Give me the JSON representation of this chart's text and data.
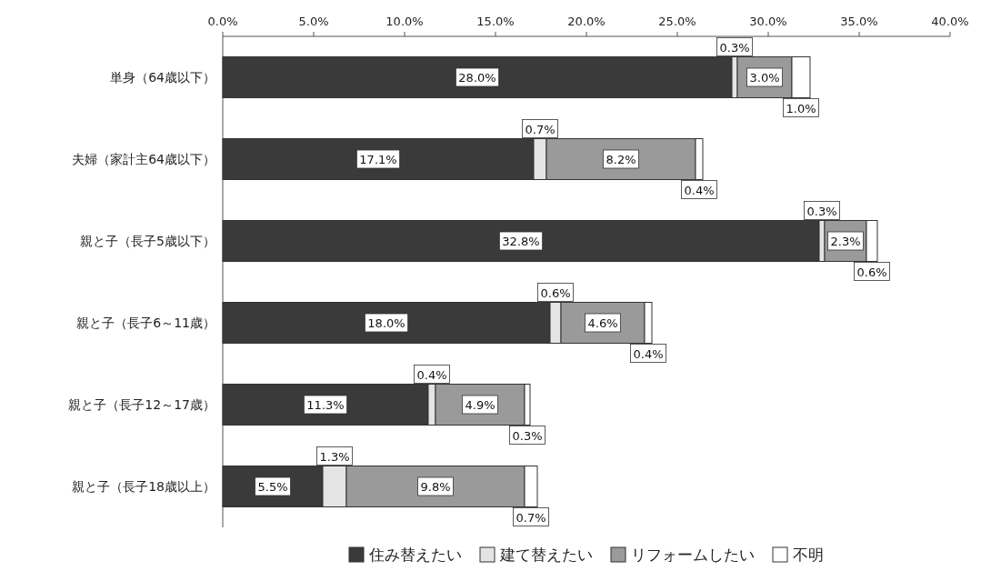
{
  "chart_data": {
    "type": "bar",
    "orientation": "horizontal",
    "stacked": true,
    "categories": [
      "単身（64歳以下）",
      "夫婦（家計主64歳以下）",
      "親と子（長子5歳以下）",
      "親と子（長子6～11歳）",
      "親と子（長子12～17歳）",
      "親と子（長子18歳以上）"
    ],
    "series": [
      {
        "name": "住み替えたい",
        "color": "#3a3a3a",
        "values": [
          28.0,
          17.1,
          32.8,
          18.0,
          11.3,
          5.5
        ],
        "value_labels": [
          "28.0%",
          "17.1%",
          "32.8%",
          "18.0%",
          "11.3%",
          "5.5%"
        ]
      },
      {
        "name": "建て替えたい",
        "color": "#e4e4e4",
        "values": [
          0.3,
          0.7,
          0.3,
          0.6,
          0.4,
          1.3
        ],
        "value_labels": [
          "0.3%",
          "0.7%",
          "0.3%",
          "0.6%",
          "0.4%",
          "1.3%"
        ]
      },
      {
        "name": "リフォームしたい",
        "color": "#9a9a9a",
        "values": [
          3.0,
          8.2,
          2.3,
          4.6,
          4.9,
          9.8
        ],
        "value_labels": [
          "3.0%",
          "8.2%",
          "2.3%",
          "4.6%",
          "4.9%",
          "9.8%"
        ]
      },
      {
        "name": "不明",
        "color": "#ffffff",
        "values": [
          1.0,
          0.4,
          0.6,
          0.4,
          0.3,
          0.7
        ],
        "value_labels": [
          "1.0%",
          "0.4%",
          "0.6%",
          "0.4%",
          "0.3%",
          "0.7%"
        ]
      }
    ],
    "xlim": [
      0,
      40
    ],
    "xticks": [
      {
        "value": 0,
        "label": "0.0%"
      },
      {
        "value": 5,
        "label": "5.0%"
      },
      {
        "value": 10,
        "label": "10.0%"
      },
      {
        "value": 15,
        "label": "15.0%"
      },
      {
        "value": 20,
        "label": "20.0%"
      },
      {
        "value": 25,
        "label": "25.0%"
      },
      {
        "value": 30,
        "label": "30.0%"
      },
      {
        "value": 35,
        "label": "35.0%"
      },
      {
        "value": 40,
        "label": "40.0%"
      }
    ],
    "grid": false,
    "legend": "bottom"
  }
}
